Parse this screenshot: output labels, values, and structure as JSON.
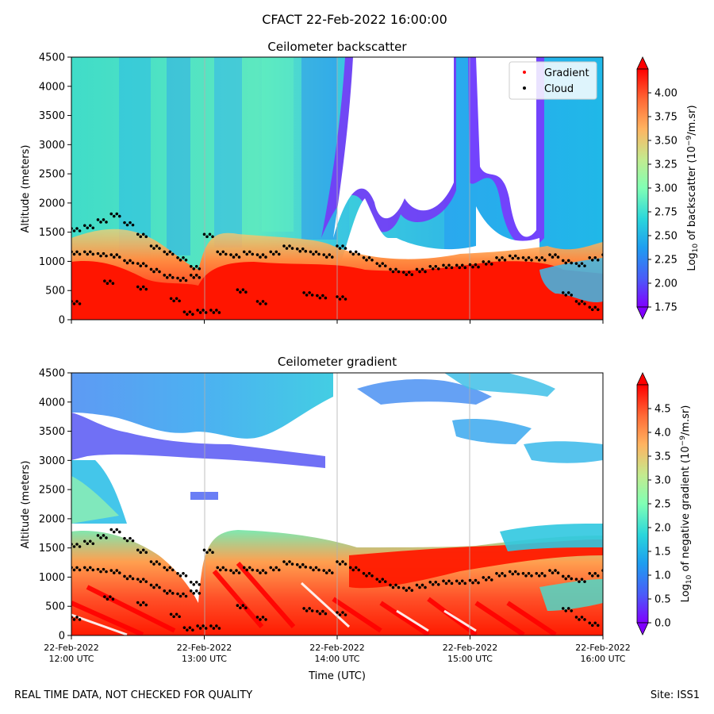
{
  "figure_title": "CFACT 22-Feb-2022 16:00:00",
  "footer_left": "REAL TIME DATA, NOT CHECKED FOR QUALITY",
  "footer_right": "Site: ISS1",
  "colors": {
    "cloud_dot": "#000000",
    "gradient_dot": "#ff0000",
    "grid": "#b0b0b0",
    "no_data": "#ffffff"
  },
  "chart_data": [
    {
      "type": "heatmap",
      "title": "Ceilometer backscatter",
      "ylabel": "Altitude (meters)",
      "xlabel": "",
      "y_ticks": [
        0,
        500,
        1000,
        1500,
        2000,
        2500,
        3000,
        3500,
        4000,
        4500
      ],
      "ylim": [
        0,
        4500
      ],
      "x_ticks": [
        "22-Feb-2022\n12:00 UTC",
        "22-Feb-2022\n13:00 UTC",
        "22-Feb-2022\n14:00 UTC",
        "22-Feb-2022\n15:00 UTC",
        "22-Feb-2022\n16:00 UTC"
      ],
      "x_tick_labels_shown": false,
      "xlim_hours": [
        12,
        16
      ],
      "grid": "vertical lines at hourly ticks",
      "legend": {
        "placement": "top-right",
        "entries": [
          "Gradient",
          "Cloud"
        ]
      },
      "colorbar": {
        "label": "Log10 of backscatter (10^-9/m.sr)",
        "range": [
          1.75,
          4.25
        ],
        "ticks": [
          "1.75",
          "2.00",
          "2.25",
          "2.50",
          "2.75",
          "3.00",
          "3.25",
          "3.50",
          "3.75",
          "4.00"
        ],
        "colormap": "rainbow",
        "extend": "both"
      }
    },
    {
      "type": "heatmap",
      "title": "Ceilometer gradient",
      "ylabel": "Altitude (meters)",
      "xlabel": "Time (UTC)",
      "y_ticks": [
        0,
        500,
        1000,
        1500,
        2000,
        2500,
        3000,
        3500,
        4000,
        4500
      ],
      "ylim": [
        0,
        4500
      ],
      "x_ticks": [
        "22-Feb-2022\n12:00 UTC",
        "22-Feb-2022\n13:00 UTC",
        "22-Feb-2022\n14:00 UTC",
        "22-Feb-2022\n15:00 UTC",
        "22-Feb-2022\n16:00 UTC"
      ],
      "x_tick_labels_shown": true,
      "xlim_hours": [
        12,
        16
      ],
      "grid": "vertical lines at hourly ticks",
      "colorbar": {
        "label": "Log10 of negative gradient (10^-9/m.sr)",
        "range": [
          0.0,
          5.0
        ],
        "ticks": [
          "0.0",
          "0.5",
          "1.0",
          "1.5",
          "2.0",
          "2.5",
          "3.0",
          "3.5",
          "4.0",
          "4.5"
        ],
        "colormap": "rainbow",
        "extend": "both"
      }
    }
  ],
  "cloud_base_series": {
    "name": "Cloud",
    "x_hours": [
      12.0,
      12.1,
      12.2,
      12.3,
      12.4,
      12.5,
      12.6,
      12.7,
      12.8,
      12.9,
      13.0,
      13.1,
      13.2,
      13.3,
      13.4,
      13.5,
      13.6,
      13.7,
      13.8,
      13.9,
      14.0,
      14.1,
      14.2,
      14.3,
      14.4,
      14.5,
      14.6,
      14.7,
      14.8,
      14.9,
      15.0,
      15.1,
      15.2,
      15.3,
      15.4,
      15.5,
      15.6,
      15.7,
      15.8,
      15.9,
      16.0
    ],
    "y_m": [
      1150,
      1150,
      1120,
      1100,
      1000,
      950,
      850,
      750,
      700,
      750,
      1450,
      1150,
      1100,
      1150,
      1100,
      1150,
      1250,
      1200,
      1150,
      1100,
      1250,
      1150,
      1050,
      950,
      850,
      800,
      850,
      900,
      920,
      920,
      930,
      980,
      1050,
      1080,
      1050,
      1050,
      1100,
      1000,
      950,
      1050,
      1100
    ],
    "upper_x_hours": [
      12.0,
      12.1,
      12.2,
      12.3,
      12.4,
      12.5,
      12.6,
      12.7,
      12.8,
      12.9
    ],
    "upper_y_m": [
      1550,
      1600,
      1700,
      1800,
      1650,
      1450,
      1250,
      1150,
      1050,
      900
    ],
    "lower_x_hours": [
      12.0,
      12.25,
      12.5,
      12.75,
      12.85,
      12.95,
      13.05,
      13.25,
      13.4,
      13.75,
      13.85,
      14.0,
      15.7,
      15.8,
      15.9
    ],
    "lower_y_m": [
      300,
      650,
      550,
      350,
      120,
      150,
      150,
      500,
      300,
      450,
      400,
      380,
      450,
      300,
      200
    ]
  }
}
